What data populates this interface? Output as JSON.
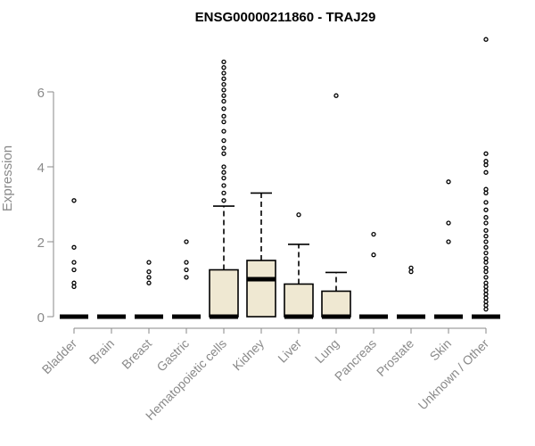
{
  "chart_data": {
    "type": "boxplot",
    "title": "ENSG00000211860 - TRAJ29",
    "xlabel": "",
    "ylabel": "Expression",
    "ylim": [
      0,
      7.5
    ],
    "yticks": [
      0,
      2,
      4,
      6
    ],
    "grid": false,
    "box_color": "#efe8d2",
    "categories": [
      "Bladder",
      "Brain",
      "Breast",
      "Gastric",
      "Hematopoietic cells",
      "Kidney",
      "Liver",
      "Lung",
      "Pancreas",
      "Prostate",
      "Skin",
      "Unknown / Other"
    ],
    "boxes": [
      {
        "q1": 0,
        "median": 0,
        "q3": 0,
        "whisker_low": 0,
        "whisker_high": 0,
        "outliers": [
          3.1,
          1.85,
          1.45,
          1.25,
          0.9,
          0.8
        ]
      },
      {
        "q1": 0,
        "median": 0,
        "q3": 0,
        "whisker_low": 0,
        "whisker_high": 0,
        "outliers": []
      },
      {
        "q1": 0,
        "median": 0,
        "q3": 0,
        "whisker_low": 0,
        "whisker_high": 0,
        "outliers": [
          1.45,
          1.2,
          1.05,
          0.9
        ]
      },
      {
        "q1": 0,
        "median": 0,
        "q3": 0,
        "whisker_low": 0,
        "whisker_high": 0,
        "outliers": [
          2.0,
          1.45,
          1.25,
          1.05
        ]
      },
      {
        "q1": 0,
        "median": 0,
        "q3": 1.25,
        "whisker_low": 0,
        "whisker_high": 2.95,
        "outliers": [
          3.1,
          3.3,
          3.5,
          3.7,
          3.85,
          4.0,
          4.35,
          4.5,
          4.7,
          4.95,
          5.2,
          5.35,
          5.55,
          5.75,
          5.9,
          6.05,
          6.2,
          6.35,
          6.5,
          6.65,
          6.8
        ]
      },
      {
        "q1": 0,
        "median": 1.0,
        "q3": 1.5,
        "whisker_low": 0,
        "whisker_high": 3.3,
        "outliers": []
      },
      {
        "q1": 0,
        "median": 0,
        "q3": 0.87,
        "whisker_low": 0,
        "whisker_high": 1.93,
        "outliers": [
          2.72
        ]
      },
      {
        "q1": 0,
        "median": 0,
        "q3": 0.68,
        "whisker_low": 0,
        "whisker_high": 1.18,
        "outliers": [
          5.9
        ]
      },
      {
        "q1": 0,
        "median": 0,
        "q3": 0,
        "whisker_low": 0,
        "whisker_high": 0,
        "outliers": [
          2.2,
          1.65
        ]
      },
      {
        "q1": 0,
        "median": 0,
        "q3": 0,
        "whisker_low": 0,
        "whisker_high": 0,
        "outliers": [
          1.3,
          1.2
        ]
      },
      {
        "q1": 0,
        "median": 0,
        "q3": 0,
        "whisker_low": 0,
        "whisker_high": 0,
        "outliers": [
          3.6,
          2.5,
          2.0
        ]
      },
      {
        "q1": 0,
        "median": 0,
        "q3": 0,
        "whisker_low": 0,
        "whisker_high": 0,
        "outliers": [
          7.4,
          4.35,
          4.15,
          4.05,
          3.85,
          3.4,
          3.3,
          3.05,
          2.85,
          2.65,
          2.5,
          2.3,
          2.15,
          2.0,
          1.85,
          1.7,
          1.55,
          1.45,
          1.3,
          1.2,
          1.05,
          0.9,
          0.8,
          0.7,
          0.6,
          0.5,
          0.4,
          0.3,
          0.2
        ]
      }
    ]
  }
}
